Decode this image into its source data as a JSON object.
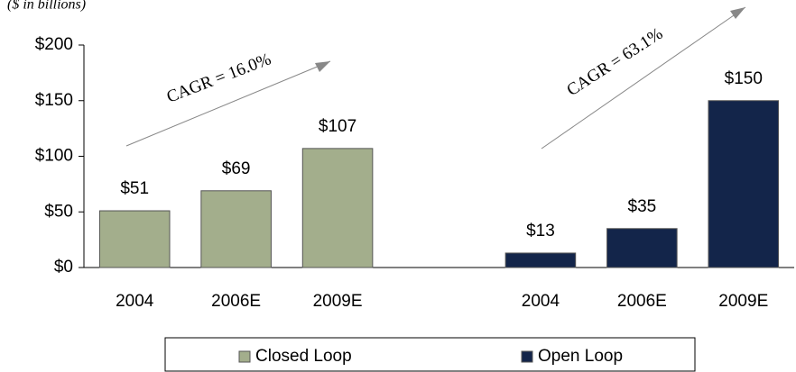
{
  "chart_data": {
    "type": "bar",
    "subtitle": "($ in billions)",
    "categories": [
      "2004",
      "2006E",
      "2009E",
      null,
      "2004",
      "2006E",
      "2009E"
    ],
    "series": [
      {
        "name": "Closed Loop",
        "color": "#a3ae8c",
        "values": [
          51,
          69,
          107,
          null,
          null,
          null,
          null
        ],
        "value_labels": [
          "$51",
          "$69",
          "$107",
          null,
          null,
          null,
          null
        ]
      },
      {
        "name": "Open Loop",
        "color": "#13254a",
        "values": [
          null,
          null,
          null,
          null,
          13,
          35,
          150
        ],
        "value_labels": [
          null,
          null,
          null,
          null,
          "$13",
          "$35",
          "$150"
        ]
      }
    ],
    "annotations": [
      "CAGR = 16.0%",
      "CAGR = 63.1%"
    ],
    "ylim": [
      0,
      200
    ],
    "yticks": [
      {
        "value": 0,
        "label": "$0"
      },
      {
        "value": 50,
        "label": "$50"
      },
      {
        "value": 100,
        "label": "$100"
      },
      {
        "value": 150,
        "label": "$150"
      },
      {
        "value": 200,
        "label": "$200"
      }
    ],
    "legend": "bottom"
  }
}
